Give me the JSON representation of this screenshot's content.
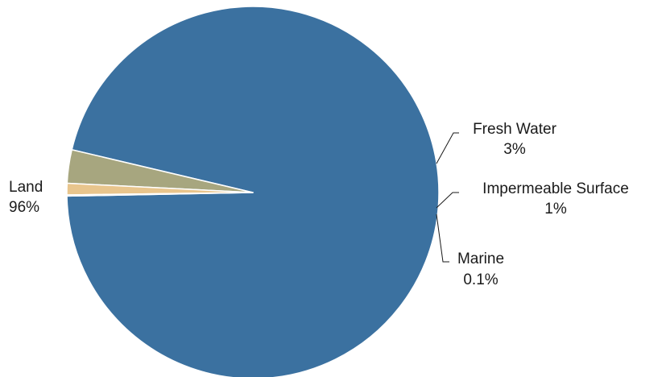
{
  "chart_data": {
    "type": "pie",
    "title": "",
    "start_angle_deg": -181.1,
    "direction": "counterclockwise",
    "slices": [
      {
        "label": "Land",
        "pct_label": "96%",
        "value": 96,
        "color": "#3b71a0"
      },
      {
        "label": "Fresh Water",
        "pct_label": "3%",
        "value": 2.9,
        "color": "#a7a67f"
      },
      {
        "label": "Impermeable Surface",
        "pct_label": "1%",
        "value": 1.0,
        "color": "#e8c58d"
      },
      {
        "label": "Marine",
        "pct_label": "0.1%",
        "value": 0.1,
        "color": "#d8e3a6"
      }
    ]
  }
}
